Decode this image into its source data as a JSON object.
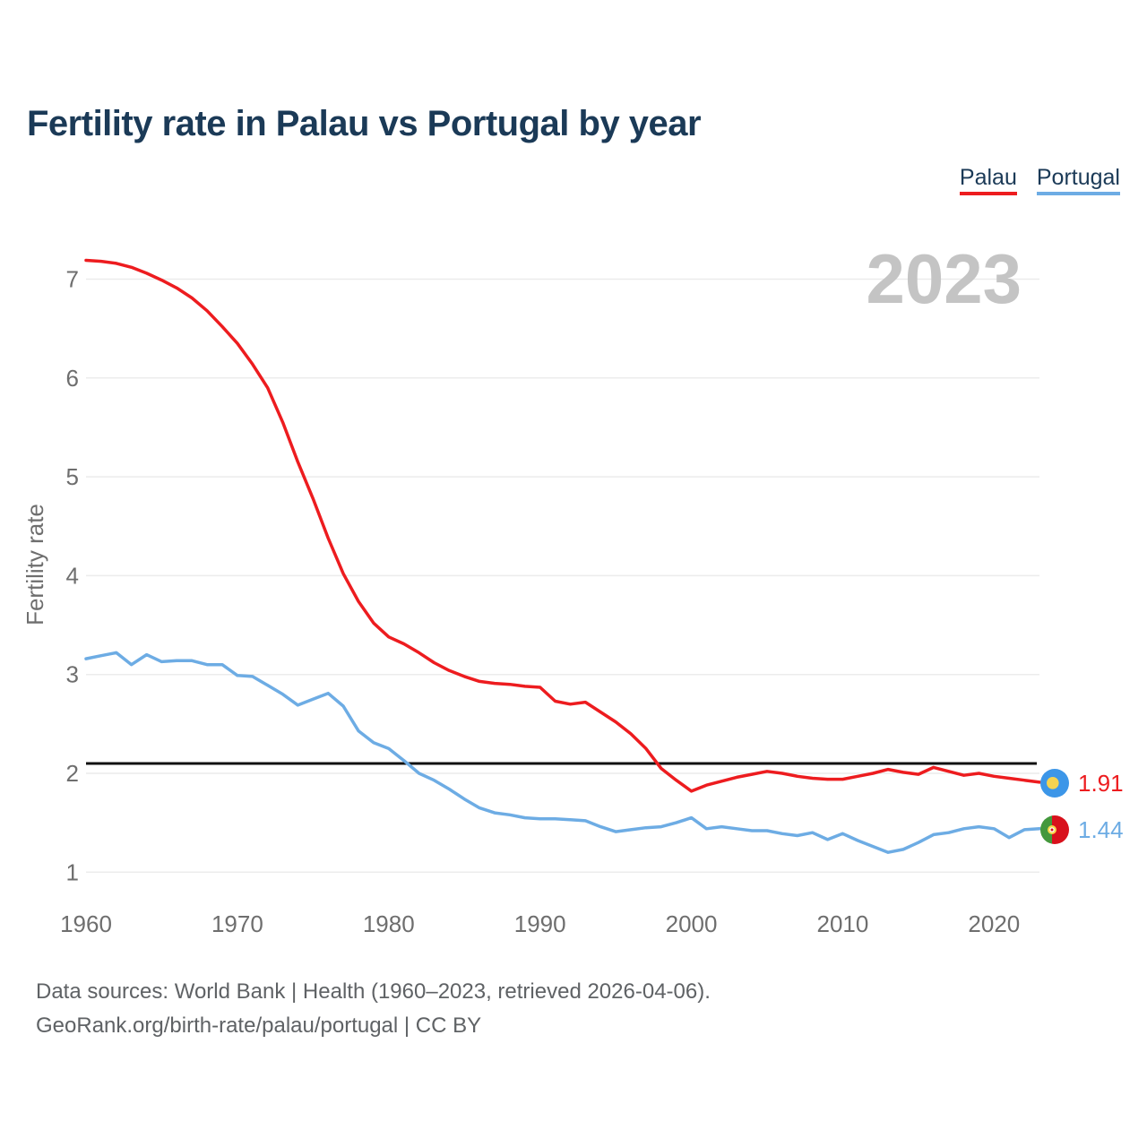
{
  "title": "Fertility rate in Palau vs Portugal by year",
  "watermark": "2023",
  "legend": {
    "items": [
      {
        "label": "Palau",
        "color": "#ed1c1f"
      },
      {
        "label": "Portugal",
        "color": "#6dace4"
      }
    ]
  },
  "y_axis": {
    "label": "Fertility rate",
    "ticks": [
      1,
      2,
      3,
      4,
      5,
      6,
      7
    ]
  },
  "x_axis": {
    "ticks": [
      1960,
      1970,
      1980,
      1990,
      2000,
      2010,
      2020
    ]
  },
  "reference_line": {
    "value": 2.1,
    "color": "#111111"
  },
  "end_labels": {
    "palau": {
      "value": "1.91",
      "color": "#ed1c1f",
      "flag": "palau-flag"
    },
    "portugal": {
      "value": "1.44",
      "color": "#6dace4",
      "flag": "portugal-flag"
    }
  },
  "footer": {
    "line1": "Data sources: World Bank | Health (1960–2023, retrieved 2026-04-06).",
    "line2": "GeoRank.org/birth-rate/palau/portugal | CC BY"
  },
  "colors": {
    "grid": "#ececec",
    "tick_text": "#6e6e6e",
    "title_text": "#1b3a57"
  },
  "chart_data": {
    "type": "line",
    "title": "Fertility rate in Palau vs Portugal by year",
    "xlabel": "",
    "ylabel": "Fertility rate",
    "xlim": [
      1960,
      2023
    ],
    "ylim": [
      1,
      7.3
    ],
    "grid": "horizontal",
    "legend_position": "top-right",
    "x": [
      1960,
      1961,
      1962,
      1963,
      1964,
      1965,
      1966,
      1967,
      1968,
      1969,
      1970,
      1971,
      1972,
      1973,
      1974,
      1975,
      1976,
      1977,
      1978,
      1979,
      1980,
      1981,
      1982,
      1983,
      1984,
      1985,
      1986,
      1987,
      1988,
      1989,
      1990,
      1991,
      1992,
      1993,
      1994,
      1995,
      1996,
      1997,
      1998,
      1999,
      2000,
      2001,
      2002,
      2003,
      2004,
      2005,
      2006,
      2007,
      2008,
      2009,
      2010,
      2011,
      2012,
      2013,
      2014,
      2015,
      2016,
      2017,
      2018,
      2019,
      2020,
      2021,
      2022,
      2023
    ],
    "series": [
      {
        "name": "Palau",
        "color": "#ed1c1f",
        "values": [
          7.19,
          7.18,
          7.16,
          7.12,
          7.06,
          6.99,
          6.91,
          6.81,
          6.68,
          6.52,
          6.35,
          6.14,
          5.9,
          5.55,
          5.15,
          4.78,
          4.38,
          4.02,
          3.74,
          3.52,
          3.38,
          3.31,
          3.22,
          3.12,
          3.04,
          2.98,
          2.93,
          2.91,
          2.9,
          2.88,
          2.87,
          2.73,
          2.7,
          2.72,
          2.62,
          2.52,
          2.4,
          2.25,
          2.05,
          1.93,
          1.82,
          1.88,
          1.92,
          1.96,
          1.99,
          2.02,
          2.0,
          1.97,
          1.95,
          1.94,
          1.94,
          1.97,
          2.0,
          2.04,
          2.01,
          1.99,
          2.06,
          2.02,
          1.98,
          2.0,
          1.97,
          1.95,
          1.93,
          1.91
        ]
      },
      {
        "name": "Portugal",
        "color": "#6dace4",
        "values": [
          3.16,
          3.19,
          3.22,
          3.1,
          3.2,
          3.13,
          3.14,
          3.14,
          3.1,
          3.1,
          2.99,
          2.98,
          2.89,
          2.8,
          2.69,
          2.75,
          2.81,
          2.68,
          2.43,
          2.31,
          2.25,
          2.13,
          2.0,
          1.93,
          1.84,
          1.74,
          1.65,
          1.6,
          1.58,
          1.55,
          1.54,
          1.54,
          1.53,
          1.52,
          1.46,
          1.41,
          1.43,
          1.45,
          1.46,
          1.5,
          1.55,
          1.44,
          1.46,
          1.44,
          1.42,
          1.42,
          1.39,
          1.37,
          1.4,
          1.33,
          1.39,
          1.32,
          1.26,
          1.2,
          1.23,
          1.3,
          1.38,
          1.4,
          1.44,
          1.46,
          1.44,
          1.35,
          1.43,
          1.44
        ]
      }
    ],
    "reference_line_value": 2.1,
    "end_values": {
      "Palau": 1.91,
      "Portugal": 1.44
    }
  }
}
